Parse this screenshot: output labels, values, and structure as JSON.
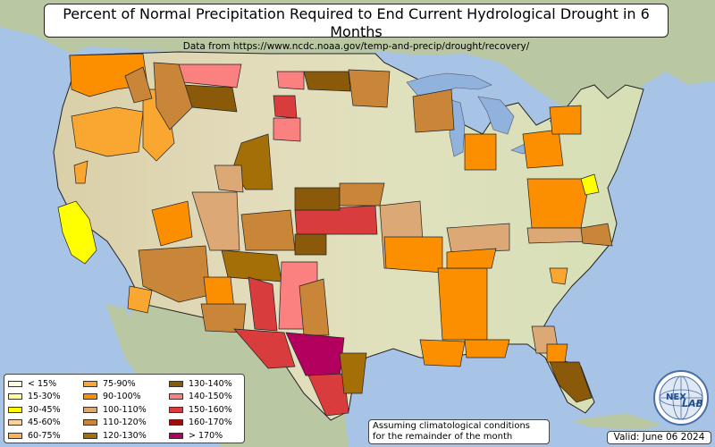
{
  "title": "Percent of Normal Precipitation Required to End Current Hydrological Drought in 6 Months",
  "subtitle": "Data from https://www.ncdc.noaa.gov/temp-and-precip/drought/recovery/",
  "legend": {
    "items": [
      {
        "label": "< 15%",
        "color": "#fffde0"
      },
      {
        "label": "15-30%",
        "color": "#ffff99"
      },
      {
        "label": "30-45%",
        "color": "#ffff00"
      },
      {
        "label": "45-60%",
        "color": "#fcd09a"
      },
      {
        "label": "60-75%",
        "color": "#f8b25a"
      },
      {
        "label": "75-90%",
        "color": "#f9a731"
      },
      {
        "label": "90-100%",
        "color": "#fb8f00"
      },
      {
        "label": "100-110%",
        "color": "#dba876"
      },
      {
        "label": "110-120%",
        "color": "#c98639"
      },
      {
        "label": "120-130%",
        "color": "#a36f06"
      },
      {
        "label": "130-140%",
        "color": "#8a5a0a"
      },
      {
        "label": "140-150%",
        "color": "#fb8080"
      },
      {
        "label": "150-160%",
        "color": "#d83c3c"
      },
      {
        "label": "160-170%",
        "color": "#a30b0b"
      },
      {
        "label": "> 170%",
        "color": "#b3005f"
      }
    ]
  },
  "note": {
    "line1": "Assuming climatological conditions",
    "line2": "for the remainder of the month"
  },
  "valid": "Valid: June 06 2024",
  "logo": {
    "text1": "NEX",
    "text2": "LAB",
    "icon": "globe-logo-icon"
  },
  "colors": {
    "ocean": "#a7c3e6",
    "land": "#e7e1c2",
    "foreign": "#b9c7a3",
    "lake": "#8fb3dd",
    "border": "#222222"
  }
}
